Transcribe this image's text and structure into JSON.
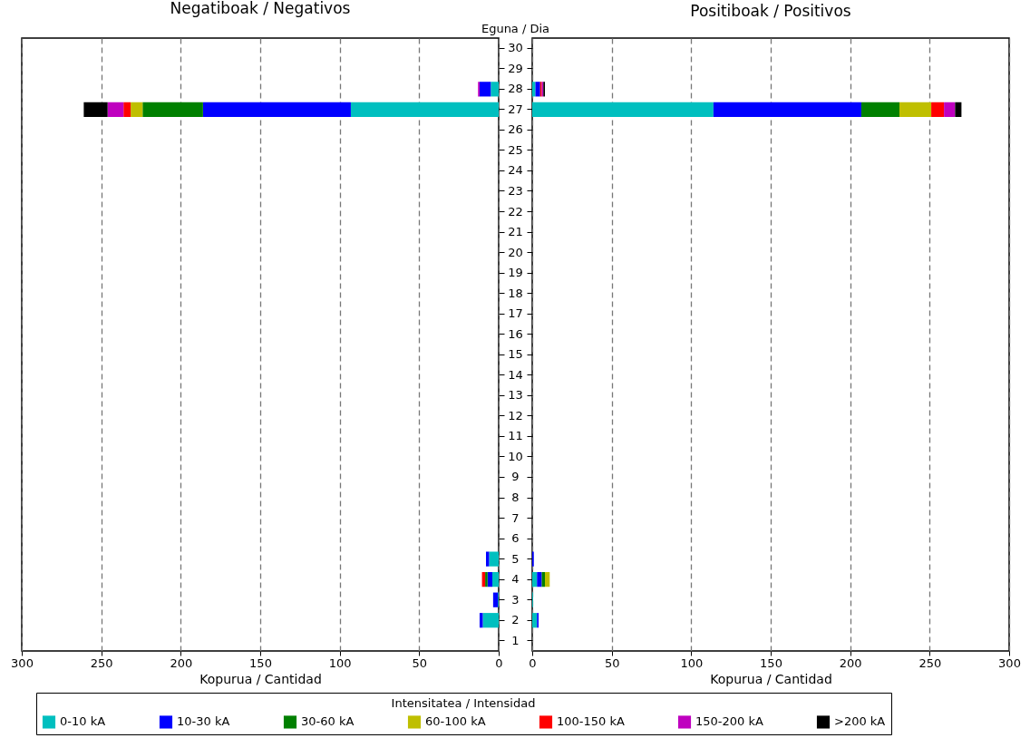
{
  "chart_data": [
    {
      "type": "bar",
      "orientation": "horizontal",
      "stacked": true,
      "title": "Negatiboak / Negativos",
      "xlabel": "Kopurua / Cantidad",
      "ylabel": "Eguna / Dia",
      "legend_title": "Intensitatea / Intensidad",
      "legend": "bottom",
      "grid": "x",
      "line_style": "dashed",
      "categories": [
        "30",
        "29",
        "28",
        "27",
        "26",
        "25",
        "24",
        "23",
        "22",
        "21",
        "20",
        "19",
        "18",
        "17",
        "16",
        "15",
        "14",
        "13",
        "12",
        "11",
        "10",
        "9",
        "8",
        "7",
        "6",
        "5",
        "4",
        "3",
        "2",
        "1"
      ],
      "xlim": [
        300,
        0
      ],
      "xticks": [
        300,
        250,
        200,
        150,
        100,
        50,
        0
      ],
      "series": [
        {
          "name": "0-10 kA",
          "color": "#00bfbf",
          "values": [
            0,
            0,
            5,
            93,
            0,
            0,
            0,
            0,
            0,
            0,
            0,
            0,
            0,
            0,
            0,
            0,
            0,
            0,
            0,
            0,
            0,
            0,
            0,
            0,
            0,
            6,
            4,
            0.5,
            10,
            0
          ]
        },
        {
          "name": "10-30 kA",
          "color": "#0000ff",
          "values": [
            0,
            0,
            7,
            93,
            0,
            0,
            0,
            0,
            0,
            0,
            0,
            0,
            0,
            0,
            0,
            0,
            0,
            0,
            0,
            0,
            0,
            0,
            0,
            0,
            0,
            2,
            3,
            3,
            2,
            0
          ]
        },
        {
          "name": "30-60 kA",
          "color": "#008000",
          "values": [
            0,
            0,
            0,
            38,
            0,
            0,
            0,
            0,
            0,
            0,
            0,
            0,
            0,
            0,
            0,
            0,
            0,
            0,
            0,
            0,
            0,
            0,
            0,
            0,
            0,
            0,
            1.5,
            0,
            0,
            0
          ]
        },
        {
          "name": "60-100 kA",
          "color": "#bfbf00",
          "values": [
            0,
            0,
            0,
            7.5,
            0,
            0,
            0,
            0,
            0,
            0,
            0,
            0,
            0,
            0,
            0,
            0,
            0,
            0,
            0,
            0,
            0,
            0,
            0,
            0,
            0,
            0,
            0,
            0,
            0,
            0
          ]
        },
        {
          "name": "100-150 kA",
          "color": "#ff0000",
          "values": [
            0,
            0,
            0,
            4.5,
            0,
            0,
            0,
            0,
            0,
            0,
            0,
            0,
            0,
            0,
            0,
            0,
            0,
            0,
            0,
            0,
            0,
            0,
            0,
            0,
            0,
            0,
            2,
            0,
            0,
            0
          ]
        },
        {
          "name": "150-200 kA",
          "color": "#bf00bf",
          "values": [
            0,
            0,
            1,
            10,
            0,
            0,
            0,
            0,
            0,
            0,
            0,
            0,
            0,
            0,
            0,
            0,
            0,
            0,
            0,
            0,
            0,
            0,
            0,
            0,
            0,
            0,
            0,
            0,
            0,
            0
          ]
        },
        {
          "name": ">200 kA",
          "color": "#000000",
          "values": [
            0,
            0,
            0,
            15,
            0,
            0,
            0,
            0,
            0,
            0,
            0,
            0,
            0,
            0,
            0,
            0,
            0,
            0,
            0,
            0,
            0,
            0,
            0,
            0,
            0,
            0,
            0,
            0,
            0,
            0
          ]
        }
      ]
    },
    {
      "type": "bar",
      "orientation": "horizontal",
      "stacked": true,
      "title": "Positiboak / Positivos",
      "xlabel": "Kopurua / Cantidad",
      "grid": "x",
      "line_style": "dashed",
      "tick_labels": "x",
      "categories": [
        "30",
        "29",
        "28",
        "27",
        "26",
        "25",
        "24",
        "23",
        "22",
        "21",
        "20",
        "19",
        "18",
        "17",
        "16",
        "15",
        "14",
        "13",
        "12",
        "11",
        "10",
        "9",
        "8",
        "7",
        "6",
        "5",
        "4",
        "3",
        "2",
        "1"
      ],
      "xlim": [
        0,
        300
      ],
      "xticks": [
        0,
        50,
        100,
        150,
        200,
        250,
        300
      ],
      "series": [
        {
          "name": "0-10 kA",
          "color": "#00bfbf",
          "values": [
            0,
            0,
            2,
            114,
            0,
            0,
            0,
            0,
            0,
            0,
            0,
            0,
            0,
            0,
            0,
            0,
            0,
            0,
            0,
            0,
            0,
            0,
            0,
            0,
            0,
            0,
            3,
            0.5,
            3,
            0
          ]
        },
        {
          "name": "10-30 kA",
          "color": "#0000ff",
          "values": [
            0,
            0,
            3,
            93,
            0,
            0,
            0,
            0,
            0,
            0,
            0,
            0,
            0,
            0,
            0,
            0,
            0,
            0,
            0,
            0,
            0,
            0,
            0,
            0,
            0,
            1,
            3,
            0,
            1,
            0
          ]
        },
        {
          "name": "30-60 kA",
          "color": "#008000",
          "values": [
            0,
            0,
            0,
            24,
            0,
            0,
            0,
            0,
            0,
            0,
            0,
            0,
            0,
            0,
            0,
            0,
            0,
            0,
            0,
            0,
            0,
            0,
            0,
            0,
            0,
            0,
            2,
            0,
            0,
            0
          ]
        },
        {
          "name": "60-100 kA",
          "color": "#bfbf00",
          "values": [
            0,
            0,
            0,
            20,
            0,
            0,
            0,
            0,
            0,
            0,
            0,
            0,
            0,
            0,
            0,
            0,
            0,
            0,
            0,
            0,
            0,
            0,
            0,
            0,
            0,
            0,
            3,
            0,
            0,
            0
          ]
        },
        {
          "name": "100-150 kA",
          "color": "#ff0000",
          "values": [
            0,
            0,
            1,
            8,
            0,
            0,
            0,
            0,
            0,
            0,
            0,
            0,
            0,
            0,
            0,
            0,
            0,
            0,
            0,
            0,
            0,
            0,
            0,
            0,
            0,
            0,
            0,
            0,
            0,
            0
          ]
        },
        {
          "name": "150-200 kA",
          "color": "#bf00bf",
          "values": [
            0,
            0,
            1,
            7,
            0,
            0,
            0,
            0,
            0,
            0,
            0,
            0,
            0,
            0,
            0,
            0,
            0,
            0,
            0,
            0,
            0,
            0,
            0,
            0,
            0,
            0,
            0,
            0,
            0,
            0
          ]
        },
        {
          "name": ">200 kA",
          "color": "#000000",
          "values": [
            0,
            0,
            1,
            4,
            0,
            0,
            0,
            0,
            0,
            0,
            0,
            0,
            0,
            0,
            0,
            0,
            0,
            0,
            0,
            0,
            0,
            0,
            0,
            0,
            0,
            0,
            0,
            0,
            0,
            0
          ]
        }
      ]
    }
  ]
}
